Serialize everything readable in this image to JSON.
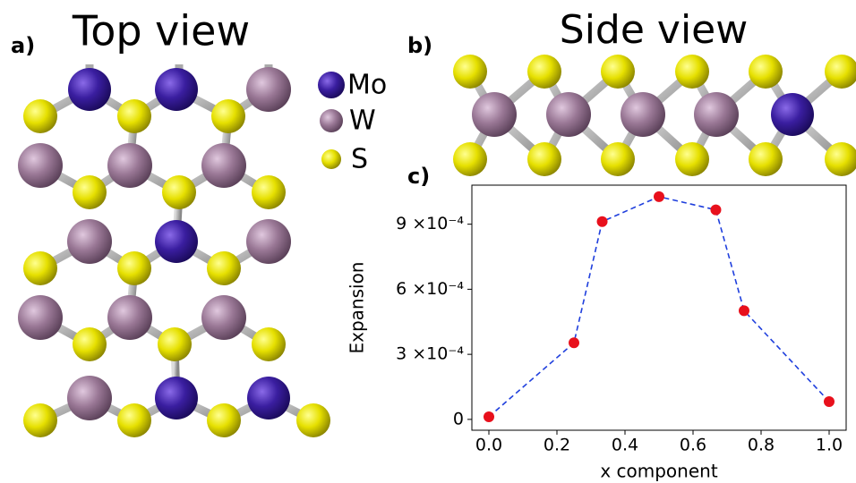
{
  "panel_labels": [
    "a)",
    "b)",
    "c)"
  ],
  "top_view": {
    "title": "Top view"
  },
  "side_view": {
    "title": "Side view"
  },
  "legend": [
    "Mo",
    "W",
    "S"
  ],
  "chart_data": {
    "type": "line",
    "xlabel": "x component",
    "ylabel": "Expansion",
    "x": [
      0,
      0.25,
      0.333,
      0.5,
      0.667,
      0.75,
      1.0
    ],
    "series": [
      {
        "color": "#1f3fdd",
        "marker_color": "#e8101c",
        "line_style": "dashed",
        "values": [
          1.2e-05,
          0.000353,
          0.000912,
          0.001027,
          0.000966,
          0.000501,
          8.2e-05
        ]
      }
    ],
    "xlim": [
      -0.05,
      1.05
    ],
    "ylim": [
      -5e-05,
      0.00108
    ],
    "xticks": [
      {
        "value": 0,
        "label": "0.0"
      },
      0.2,
      0.4,
      0.6,
      0.8,
      {
        "value": 1,
        "label": "1.0"
      }
    ],
    "yticks": [
      0,
      {
        "value": 0.0003,
        "label": "3 ×10⁻⁴"
      },
      {
        "value": 0.0006,
        "label": "6 ×10⁻⁴"
      },
      {
        "value": 0.0009,
        "label": "9 ×10⁻⁴"
      }
    ]
  }
}
